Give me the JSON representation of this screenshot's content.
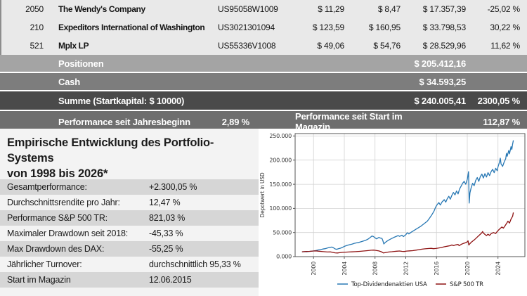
{
  "table": {
    "rows": [
      {
        "qty": "2050",
        "name": "The Wendy's Company",
        "isin": "US95058W1009",
        "buy": "$ 11,29",
        "price": "$ 8,47",
        "value": "$ 17.357,39",
        "perf": "-25,02 %"
      },
      {
        "qty": "210",
        "name": "Expeditors International of Washington",
        "isin": "US3021301094",
        "buy": "$ 123,59",
        "price": "$ 160,95",
        "value": "$ 33.798,53",
        "perf": "30,22 %"
      },
      {
        "qty": "521",
        "name": "Mplx LP",
        "isin": "US55336V1008",
        "buy": "$ 49,06",
        "price": "$ 54,76",
        "value": "$ 28.529,96",
        "perf": "11,62 %"
      }
    ],
    "summary": {
      "positions_label": "Positionen",
      "positions_value": "$ 205.412,16",
      "cash_label": "Cash",
      "cash_value": "$ 34.593,25",
      "sum_label": "Summe (Startkapital: $ 10000)",
      "sum_value": "$ 240.005,41",
      "sum_perf": "2300,05 %",
      "ytd_label": "Performance seit Jahresbeginn",
      "ytd_value": "2,89 %",
      "since_label": "Performance seit Start im Magazin",
      "since_value": "112,87 %"
    }
  },
  "stats_panel": {
    "title_line1": "Empirische Entwicklung des Portfolio-Systems",
    "title_line2": "von 1998 bis 2026*",
    "rows": [
      {
        "label": "Gesamtperformance:",
        "value": "+2.300,05 %"
      },
      {
        "label": "Durchschnittsrendite pro Jahr:",
        "value": "12,47 %"
      },
      {
        "label": "Performance S&P 500 TR:",
        "value": "821,03 %"
      },
      {
        "label": "Maximaler Drawdown seit 2018:",
        "value": "-45,33 %"
      },
      {
        "label": "Max Drawdown des DAX:",
        "value": "-55,25 %"
      },
      {
        "label": "Jährlicher Turnover:",
        "value": "durchschnittlich 95,33 %"
      },
      {
        "label": "Start im Magazin",
        "value": "12.06.2015"
      }
    ]
  },
  "colors": {
    "stock_row_bg": "#e9e9e9",
    "positions_bg": "#a4a4a4",
    "cash_bg": "#7d7d7d",
    "sum_bg": "#4a4a4a",
    "perf_bg": "#6e6e6e",
    "panel_shaded_row": "#d6d6d6",
    "series_blue": "#2878b4",
    "series_red": "#8e1212"
  },
  "chart_data": {
    "type": "line",
    "ylabel": "Depotwert in USD",
    "x_ticks": [
      2000,
      2004,
      2008,
      2012,
      2016,
      2020,
      2024
    ],
    "y_ticks": [
      0,
      50000,
      100000,
      150000,
      200000,
      250000
    ],
    "y_tick_labels": [
      "0.000",
      "50.000",
      "100.000",
      "150.000",
      "200.000",
      "250.000"
    ],
    "xlim": [
      1997.6,
      2027.5
    ],
    "ylim": [
      0,
      255000
    ],
    "grid": true,
    "legend_position": "bottom",
    "series": [
      {
        "name": "Top-Dividendenaktien USA",
        "color": "#2878b4",
        "points": [
          [
            1998.5,
            10000
          ],
          [
            1998.8,
            10300
          ],
          [
            1999.1,
            10100
          ],
          [
            1999.4,
            10800
          ],
          [
            1999.7,
            11200
          ],
          [
            2000.0,
            11800
          ],
          [
            2000.3,
            12500
          ],
          [
            2000.6,
            13800
          ],
          [
            2000.9,
            14500
          ],
          [
            2001.2,
            15800
          ],
          [
            2001.5,
            16500
          ],
          [
            2001.8,
            17800
          ],
          [
            2002.1,
            19200
          ],
          [
            2002.4,
            19800
          ],
          [
            2002.6,
            18200
          ],
          [
            2002.8,
            16000
          ],
          [
            2003.0,
            15200
          ],
          [
            2003.2,
            16200
          ],
          [
            2003.5,
            17500
          ],
          [
            2003.8,
            19500
          ],
          [
            2004.1,
            21800
          ],
          [
            2004.4,
            23500
          ],
          [
            2004.7,
            24800
          ],
          [
            2005.0,
            26000
          ],
          [
            2005.3,
            27500
          ],
          [
            2005.6,
            28500
          ],
          [
            2005.9,
            29500
          ],
          [
            2006.2,
            31000
          ],
          [
            2006.5,
            32500
          ],
          [
            2006.8,
            34000
          ],
          [
            2007.1,
            36500
          ],
          [
            2007.4,
            40000
          ],
          [
            2007.6,
            42800
          ],
          [
            2007.8,
            41500
          ],
          [
            2008.0,
            39000
          ],
          [
            2008.2,
            36800
          ],
          [
            2008.5,
            39800
          ],
          [
            2008.7,
            38500
          ],
          [
            2008.9,
            37800
          ],
          [
            2009.0,
            34000
          ],
          [
            2009.15,
            26200
          ],
          [
            2009.3,
            29000
          ],
          [
            2009.5,
            31500
          ],
          [
            2009.8,
            34500
          ],
          [
            2010.1,
            37000
          ],
          [
            2010.4,
            39500
          ],
          [
            2010.7,
            41500
          ],
          [
            2011.0,
            43500
          ],
          [
            2011.2,
            42000
          ],
          [
            2011.5,
            44500
          ],
          [
            2011.7,
            41500
          ],
          [
            2012.0,
            45500
          ],
          [
            2012.2,
            49500
          ],
          [
            2012.4,
            47000
          ],
          [
            2012.7,
            50500
          ],
          [
            2013.0,
            53500
          ],
          [
            2013.3,
            56500
          ],
          [
            2013.6,
            59500
          ],
          [
            2014.0,
            63500
          ],
          [
            2014.4,
            68500
          ],
          [
            2014.8,
            73500
          ],
          [
            2015.1,
            80000
          ],
          [
            2015.4,
            87000
          ],
          [
            2015.7,
            95000
          ],
          [
            2015.9,
            103000
          ],
          [
            2016.1,
            108000
          ],
          [
            2016.3,
            112000
          ],
          [
            2016.5,
            107000
          ],
          [
            2016.7,
            113000
          ],
          [
            2017.0,
            118000
          ],
          [
            2017.2,
            113000
          ],
          [
            2017.4,
            120000
          ],
          [
            2017.6,
            125000
          ],
          [
            2017.8,
            119000
          ],
          [
            2018.0,
            127000
          ],
          [
            2018.2,
            133000
          ],
          [
            2018.4,
            128000
          ],
          [
            2018.6,
            136000
          ],
          [
            2018.8,
            130000
          ],
          [
            2019.0,
            140000
          ],
          [
            2019.2,
            146000
          ],
          [
            2019.4,
            152000
          ],
          [
            2019.6,
            156000
          ],
          [
            2019.8,
            150000
          ],
          [
            2020.0,
            160000
          ],
          [
            2020.1,
            170000
          ],
          [
            2020.17,
            176000
          ],
          [
            2020.25,
            111000
          ],
          [
            2020.35,
            132000
          ],
          [
            2020.5,
            142000
          ],
          [
            2020.7,
            152000
          ],
          [
            2020.9,
            147000
          ],
          [
            2021.1,
            158000
          ],
          [
            2021.3,
            164000
          ],
          [
            2021.5,
            156000
          ],
          [
            2021.7,
            166000
          ],
          [
            2021.9,
            171000
          ],
          [
            2022.1,
            163000
          ],
          [
            2022.3,
            172000
          ],
          [
            2022.5,
            165000
          ],
          [
            2022.7,
            174000
          ],
          [
            2022.9,
            168000
          ],
          [
            2023.1,
            176000
          ],
          [
            2023.3,
            181000
          ],
          [
            2023.5,
            174000
          ],
          [
            2023.7,
            183000
          ],
          [
            2023.9,
            178000
          ],
          [
            2024.0,
            186000
          ],
          [
            2024.2,
            196000
          ],
          [
            2024.3,
            204000
          ],
          [
            2024.4,
            192000
          ],
          [
            2024.6,
            187000
          ],
          [
            2024.8,
            196000
          ],
          [
            2025.0,
            203000
          ],
          [
            2025.1,
            214000
          ],
          [
            2025.2,
            208000
          ],
          [
            2025.4,
            220000
          ],
          [
            2025.5,
            213000
          ],
          [
            2025.7,
            228000
          ],
          [
            2025.8,
            222000
          ],
          [
            2025.9,
            233000
          ],
          [
            2026.0,
            241000
          ]
        ]
      },
      {
        "name": "S&P 500 TR",
        "color": "#8e1212",
        "points": [
          [
            1998.5,
            10000
          ],
          [
            1999.0,
            10600
          ],
          [
            1999.5,
            11000
          ],
          [
            2000.0,
            11600
          ],
          [
            2000.3,
            12000
          ],
          [
            2000.6,
            11400
          ],
          [
            2001.0,
            10800
          ],
          [
            2001.4,
            10200
          ],
          [
            2001.8,
            9600
          ],
          [
            2002.2,
            9800
          ],
          [
            2002.5,
            8800
          ],
          [
            2002.8,
            7900
          ],
          [
            2003.1,
            7600
          ],
          [
            2003.4,
            8200
          ],
          [
            2003.8,
            8900
          ],
          [
            2004.2,
            9300
          ],
          [
            2004.6,
            9600
          ],
          [
            2005.0,
            9900
          ],
          [
            2005.5,
            10300
          ],
          [
            2006.0,
            10900
          ],
          [
            2006.5,
            11600
          ],
          [
            2007.0,
            12400
          ],
          [
            2007.5,
            13300
          ],
          [
            2007.8,
            13600
          ],
          [
            2008.1,
            12900
          ],
          [
            2008.5,
            11800
          ],
          [
            2008.8,
            10200
          ],
          [
            2009.1,
            7600
          ],
          [
            2009.4,
            8600
          ],
          [
            2009.8,
            9600
          ],
          [
            2010.2,
            10200
          ],
          [
            2010.5,
            10800
          ],
          [
            2010.8,
            11200
          ],
          [
            2011.2,
            11600
          ],
          [
            2011.5,
            10900
          ],
          [
            2011.8,
            10700
          ],
          [
            2012.1,
            11500
          ],
          [
            2012.5,
            11900
          ],
          [
            2012.9,
            12400
          ],
          [
            2013.3,
            13400
          ],
          [
            2013.7,
            14400
          ],
          [
            2014.1,
            15400
          ],
          [
            2014.5,
            16200
          ],
          [
            2014.9,
            16800
          ],
          [
            2015.3,
            17200
          ],
          [
            2015.6,
            16400
          ],
          [
            2015.9,
            16900
          ],
          [
            2016.2,
            17600
          ],
          [
            2016.6,
            18800
          ],
          [
            2017.0,
            20400
          ],
          [
            2017.4,
            21600
          ],
          [
            2017.8,
            22800
          ],
          [
            2018.0,
            24200
          ],
          [
            2018.2,
            22800
          ],
          [
            2018.5,
            24400
          ],
          [
            2018.8,
            25200
          ],
          [
            2018.95,
            22600
          ],
          [
            2019.2,
            25400
          ],
          [
            2019.5,
            27400
          ],
          [
            2019.8,
            29000
          ],
          [
            2020.0,
            30600
          ],
          [
            2020.1,
            32800
          ],
          [
            2020.2,
            24000
          ],
          [
            2020.35,
            27000
          ],
          [
            2020.5,
            29500
          ],
          [
            2020.7,
            32000
          ],
          [
            2020.9,
            34500
          ],
          [
            2021.1,
            37500
          ],
          [
            2021.3,
            40500
          ],
          [
            2021.5,
            43500
          ],
          [
            2021.7,
            46500
          ],
          [
            2021.9,
            49500
          ],
          [
            2022.0,
            52000
          ],
          [
            2022.1,
            49000
          ],
          [
            2022.3,
            46000
          ],
          [
            2022.5,
            43500
          ],
          [
            2022.7,
            46500
          ],
          [
            2022.9,
            44000
          ],
          [
            2023.1,
            47500
          ],
          [
            2023.4,
            50000
          ],
          [
            2023.7,
            48000
          ],
          [
            2023.9,
            52000
          ],
          [
            2024.1,
            55500
          ],
          [
            2024.3,
            58500
          ],
          [
            2024.5,
            61500
          ],
          [
            2024.7,
            59000
          ],
          [
            2024.9,
            63500
          ],
          [
            2025.1,
            68500
          ],
          [
            2025.3,
            73500
          ],
          [
            2025.5,
            69500
          ],
          [
            2025.7,
            78000
          ],
          [
            2025.9,
            83500
          ],
          [
            2026.0,
            91500
          ]
        ]
      }
    ]
  }
}
